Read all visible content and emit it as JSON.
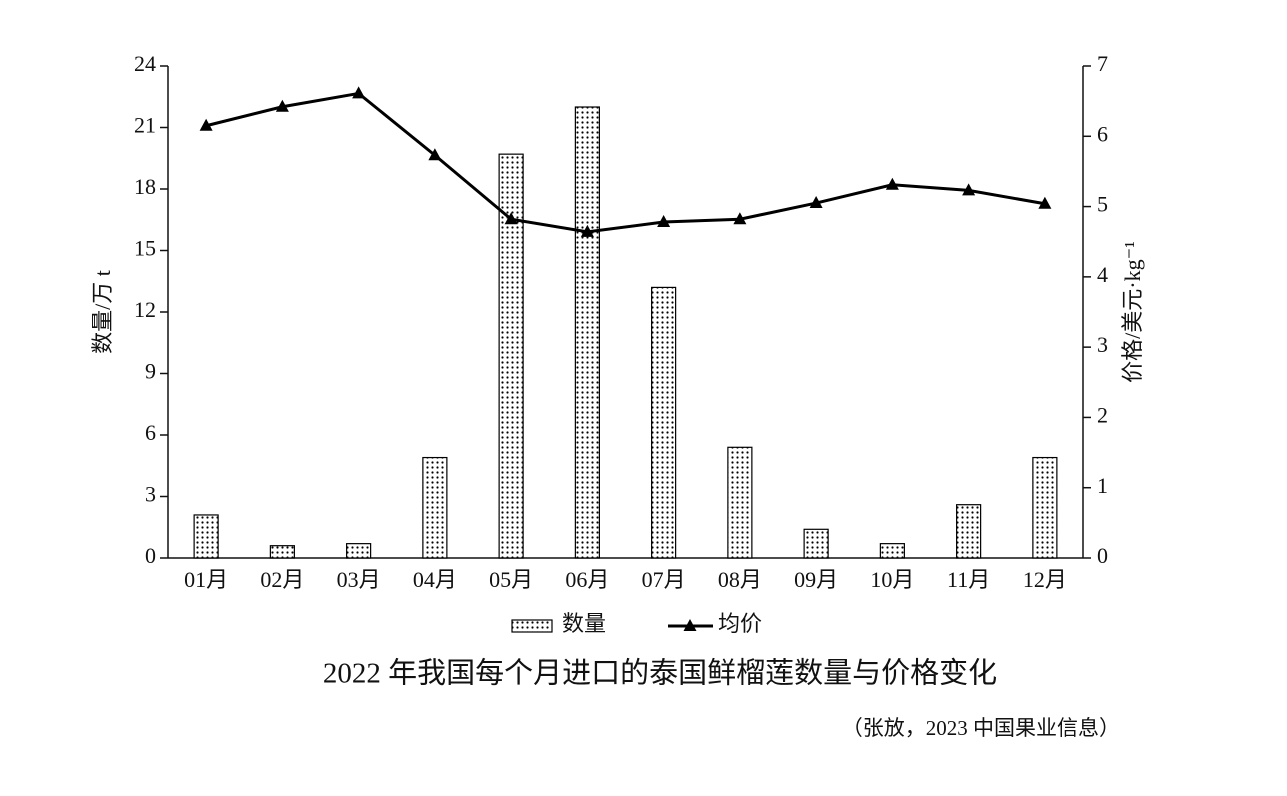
{
  "chart_data": {
    "type": "bar",
    "title": "2022 年我国每个月进口的泰国鲜榴莲数量与价格变化",
    "source": "（张放，2023 中国果业信息）",
    "y_label": "数量/万 t",
    "y2_label": "价格/美元·kg⁻¹",
    "categories": [
      "01月",
      "02月",
      "03月",
      "04月",
      "05月",
      "06月",
      "07月",
      "08月",
      "09月",
      "10月",
      "11月",
      "12月"
    ],
    "series": [
      {
        "name": "数量",
        "type": "bar",
        "color": "#000000",
        "values": [
          2.1,
          0.6,
          0.7,
          4.9,
          19.7,
          22.0,
          13.2,
          5.4,
          1.4,
          0.7,
          2.6,
          4.9
        ]
      },
      {
        "name": "均价",
        "type": "line",
        "axis": "y2",
        "color": "#000000",
        "values": [
          6.15,
          6.42,
          6.61,
          5.73,
          4.82,
          4.64,
          4.78,
          4.82,
          5.05,
          5.31,
          5.23,
          5.04
        ]
      }
    ],
    "ylim": [
      0,
      24
    ],
    "yticks": [
      0,
      3,
      6,
      9,
      12,
      15,
      18,
      21,
      24
    ],
    "y2lim": [
      0,
      7
    ],
    "y2ticks": [
      0,
      1,
      2,
      3,
      4,
      5,
      6,
      7
    ],
    "legend": "bottom"
  }
}
